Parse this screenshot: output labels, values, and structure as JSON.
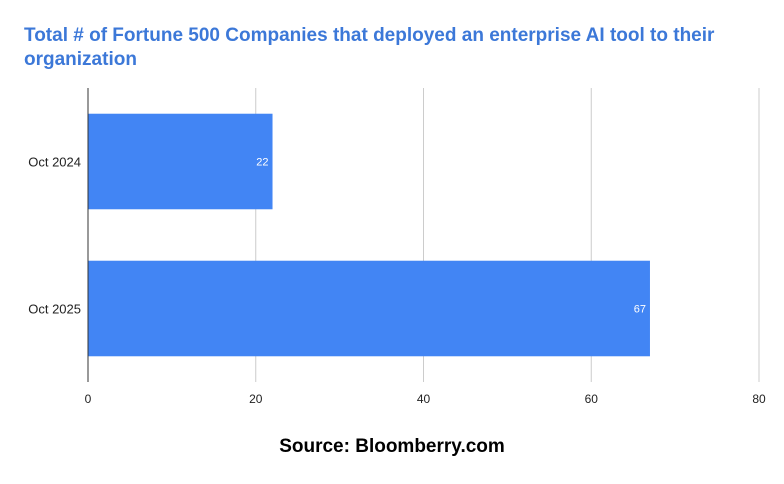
{
  "colors": {
    "title": "#3c78d8",
    "bar": "#4285f4",
    "grid": "#cccccc",
    "axis": "#333333"
  },
  "chart_data": {
    "type": "bar",
    "orientation": "horizontal",
    "title": "Total # of Fortune 500 Companies that deployed an enterprise AI tool to their organization",
    "categories": [
      "Oct 2024",
      "Oct 2025"
    ],
    "values": [
      22,
      67
    ],
    "data_labels": [
      "22",
      "67"
    ],
    "xlim": [
      0,
      80
    ],
    "x_ticks": [
      0,
      20,
      40,
      60,
      80
    ],
    "x_tick_labels": [
      "0",
      "20",
      "40",
      "60",
      "80"
    ],
    "xlabel": "",
    "ylabel": "",
    "grid": true,
    "legend": "none"
  },
  "source": "Source: Bloomberry.com"
}
